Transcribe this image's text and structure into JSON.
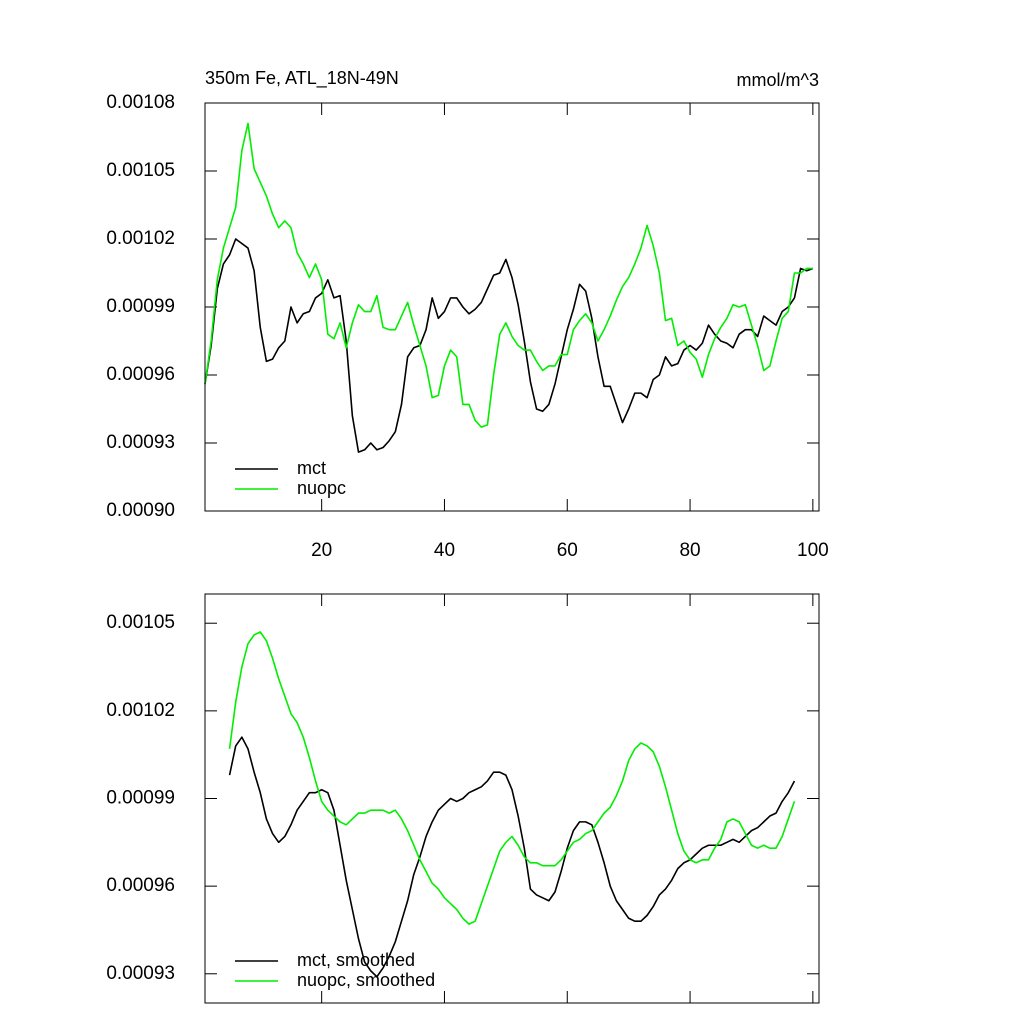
{
  "chart_data": [
    {
      "type": "line",
      "title": "350m Fe, ATL_18N-49N",
      "units": "mmol/m^3",
      "x": [
        1,
        2,
        3,
        4,
        5,
        6,
        7,
        8,
        9,
        10,
        11,
        12,
        13,
        14,
        15,
        16,
        17,
        18,
        19,
        20,
        21,
        22,
        23,
        24,
        25,
        26,
        27,
        28,
        29,
        30,
        31,
        32,
        33,
        34,
        35,
        36,
        37,
        38,
        39,
        40,
        41,
        42,
        43,
        44,
        45,
        46,
        47,
        48,
        49,
        50,
        51,
        52,
        53,
        54,
        55,
        56,
        57,
        58,
        59,
        60,
        61,
        62,
        63,
        64,
        65,
        66,
        67,
        68,
        69,
        70,
        71,
        72,
        73,
        74,
        75,
        76,
        77,
        78,
        79,
        80,
        81,
        82,
        83,
        84,
        85,
        86,
        87,
        88,
        89,
        90,
        91,
        92,
        93,
        94,
        95,
        96,
        97,
        98,
        99,
        100
      ],
      "series": [
        {
          "name": "mct",
          "color": "#000000",
          "values": [
            0.000956,
            0.000973,
            0.000998,
            0.001009,
            0.001013,
            0.00102,
            0.001018,
            0.001016,
            0.001006,
            0.000981,
            0.000966,
            0.000967,
            0.000972,
            0.000975,
            0.00099,
            0.000983,
            0.000987,
            0.000988,
            0.000994,
            0.000996,
            0.001002,
            0.000994,
            0.000995,
            0.000975,
            0.000942,
            0.000926,
            0.000927,
            0.00093,
            0.000927,
            0.000928,
            0.000931,
            0.000935,
            0.000947,
            0.000968,
            0.000972,
            0.000973,
            0.00098,
            0.000994,
            0.000985,
            0.000988,
            0.000994,
            0.000994,
            0.00099,
            0.000987,
            0.000989,
            0.000992,
            0.000998,
            0.001004,
            0.001005,
            0.001011,
            0.001003,
            0.000991,
            0.000975,
            0.000957,
            0.000945,
            0.000944,
            0.000947,
            0.000956,
            0.000968,
            0.00098,
            0.000989,
            0.001,
            0.000997,
            0.000985,
            0.000968,
            0.000955,
            0.000955,
            0.000947,
            0.000939,
            0.000945,
            0.000952,
            0.000952,
            0.00095,
            0.000958,
            0.00096,
            0.000968,
            0.000964,
            0.000965,
            0.000971,
            0.000973,
            0.000971,
            0.000974,
            0.000982,
            0.000978,
            0.000975,
            0.000974,
            0.000972,
            0.000978,
            0.00098,
            0.00098,
            0.000977,
            0.000986,
            0.000984,
            0.000982,
            0.000988,
            0.00099,
            0.000994,
            0.001007,
            0.001006,
            0.001007
          ]
        },
        {
          "name": "nuopc",
          "color": "#00ee00",
          "values": [
            0.000956,
            0.000975,
            0.001002,
            0.001016,
            0.001025,
            0.001034,
            0.001059,
            0.001071,
            0.001051,
            0.001045,
            0.001039,
            0.001031,
            0.001025,
            0.001028,
            0.001025,
            0.001014,
            0.001009,
            0.001003,
            0.001009,
            0.001002,
            0.000978,
            0.000976,
            0.000983,
            0.000972,
            0.000983,
            0.000991,
            0.000988,
            0.000988,
            0.000995,
            0.000981,
            0.00098,
            0.00098,
            0.000986,
            0.000992,
            0.000982,
            0.000973,
            0.000964,
            0.00095,
            0.000951,
            0.000964,
            0.000971,
            0.000968,
            0.000947,
            0.000947,
            0.00094,
            0.000937,
            0.000938,
            0.00096,
            0.000978,
            0.000983,
            0.000977,
            0.000973,
            0.000971,
            0.000971,
            0.000966,
            0.000962,
            0.000964,
            0.000964,
            0.000969,
            0.000969,
            0.00098,
            0.000984,
            0.000987,
            0.000983,
            0.000975,
            0.00098,
            0.000986,
            0.000993,
            0.000999,
            0.001003,
            0.001009,
            0.001016,
            0.001026,
            0.001017,
            0.001005,
            0.000984,
            0.000985,
            0.000973,
            0.000975,
            0.00097,
            0.000967,
            0.000959,
            0.000969,
            0.000976,
            0.000981,
            0.000985,
            0.000991,
            0.00099,
            0.000991,
            0.000982,
            0.000973,
            0.000962,
            0.000964,
            0.000975,
            0.000985,
            0.000988,
            0.001005,
            0.001005,
            0.001007,
            0.001007
          ]
        }
      ],
      "xlim": [
        1,
        101
      ],
      "xticks": [
        20,
        40,
        60,
        80,
        100
      ],
      "ylim": [
        0.0009,
        0.00108
      ],
      "yticks": [
        {
          "value": 0.0009,
          "label": "0.00090"
        },
        0.00093,
        0.00096,
        0.00099,
        0.00102,
        0.00105,
        0.00108
      ],
      "legend": "bottom-left"
    },
    {
      "type": "line",
      "x": [
        5,
        6,
        7,
        8,
        9,
        10,
        11,
        12,
        13,
        14,
        15,
        16,
        17,
        18,
        19,
        20,
        21,
        22,
        23,
        24,
        25,
        26,
        27,
        28,
        29,
        30,
        31,
        32,
        33,
        34,
        35,
        36,
        37,
        38,
        39,
        40,
        41,
        42,
        43,
        44,
        45,
        46,
        47,
        48,
        49,
        50,
        51,
        52,
        53,
        54,
        55,
        56,
        57,
        58,
        59,
        60,
        61,
        62,
        63,
        64,
        65,
        66,
        67,
        68,
        69,
        70,
        71,
        72,
        73,
        74,
        75,
        76,
        77,
        78,
        79,
        80,
        81,
        82,
        83,
        84,
        85,
        86,
        87,
        88,
        89,
        90,
        91,
        92,
        93,
        94,
        95,
        96,
        97
      ],
      "series": [
        {
          "name": "mct, smoothed",
          "color": "#000000",
          "values": [
            0.000998,
            0.001008,
            0.001011,
            0.001007,
            0.000999,
            0.000992,
            0.000983,
            0.000978,
            0.000975,
            0.000977,
            0.000981,
            0.000986,
            0.000989,
            0.000992,
            0.000992,
            0.000993,
            0.000992,
            0.000986,
            0.000974,
            0.000962,
            0.000952,
            0.000942,
            0.000934,
            0.000931,
            0.000929,
            0.000932,
            0.000936,
            0.000941,
            0.000948,
            0.000955,
            0.000964,
            0.00097,
            0.000977,
            0.000982,
            0.000986,
            0.000988,
            0.00099,
            0.000989,
            0.00099,
            0.000992,
            0.000993,
            0.000994,
            0.000996,
            0.000999,
            0.000999,
            0.000998,
            0.000993,
            0.000984,
            0.000973,
            0.000959,
            0.000957,
            0.000956,
            0.000955,
            0.000958,
            0.000965,
            0.000973,
            0.000979,
            0.000982,
            0.000982,
            0.000981,
            0.000975,
            0.000968,
            0.00096,
            0.000955,
            0.000952,
            0.000949,
            0.000948,
            0.000948,
            0.00095,
            0.000953,
            0.000957,
            0.000959,
            0.000962,
            0.000966,
            0.000968,
            0.000969,
            0.000971,
            0.000973,
            0.000974,
            0.000974,
            0.000974,
            0.000975,
            0.000976,
            0.000975,
            0.000977,
            0.000979,
            0.00098,
            0.000982,
            0.000984,
            0.000985,
            0.000989,
            0.000992,
            0.000996
          ]
        },
        {
          "name": "nuopc, smoothed",
          "color": "#00ee00",
          "values": [
            0.001007,
            0.001023,
            0.001035,
            0.001043,
            0.001046,
            0.001047,
            0.001044,
            0.001038,
            0.001031,
            0.001025,
            0.001019,
            0.001016,
            0.001011,
            0.001004,
            0.000996,
            0.000989,
            0.000986,
            0.000984,
            0.000982,
            0.000981,
            0.000983,
            0.000985,
            0.000985,
            0.000986,
            0.000986,
            0.000986,
            0.000985,
            0.000986,
            0.000983,
            0.000979,
            0.000974,
            0.000969,
            0.000965,
            0.000961,
            0.000959,
            0.000956,
            0.000954,
            0.000952,
            0.000949,
            0.000947,
            0.000948,
            0.000954,
            0.00096,
            0.000966,
            0.000972,
            0.000975,
            0.000977,
            0.000974,
            0.00097,
            0.000968,
            0.000968,
            0.000967,
            0.000967,
            0.000967,
            0.000969,
            0.000972,
            0.000975,
            0.000976,
            0.000978,
            0.000979,
            0.000982,
            0.000985,
            0.000987,
            0.000991,
            0.000996,
            0.001003,
            0.001007,
            0.001009,
            0.001008,
            0.001006,
            0.001001,
            0.000994,
            0.000986,
            0.000978,
            0.000972,
            0.000969,
            0.000968,
            0.000969,
            0.000969,
            0.000973,
            0.000976,
            0.000982,
            0.000983,
            0.000982,
            0.000978,
            0.000974,
            0.000973,
            0.000974,
            0.000973,
            0.000973,
            0.000977,
            0.000983,
            0.000989
          ]
        }
      ],
      "xlim": [
        1,
        101
      ],
      "xticks": [
        20,
        40,
        60,
        80,
        100
      ],
      "xtick_labels": false,
      "ylim": [
        0.00092,
        0.00106
      ],
      "yticks": [
        0.00093,
        0.00096,
        0.00099,
        0.00102,
        0.00105
      ],
      "legend": "bottom-left"
    }
  ]
}
